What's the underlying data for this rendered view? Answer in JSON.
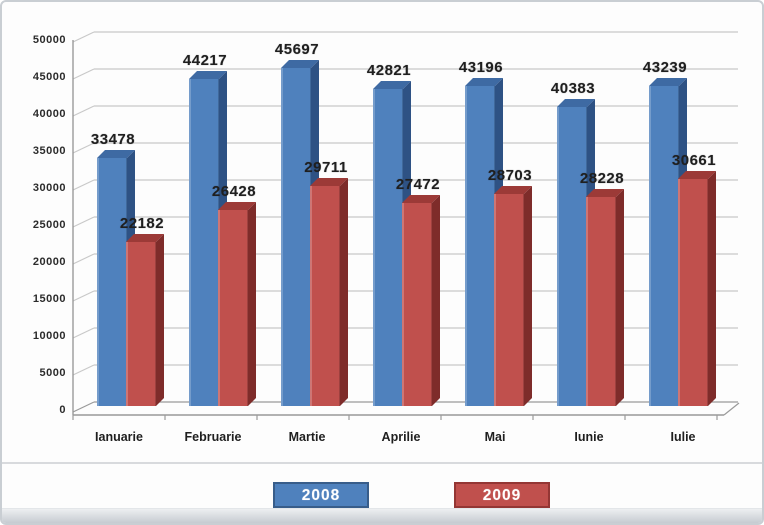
{
  "chart_data": {
    "type": "bar",
    "style": "3d-clustered-column",
    "title": "",
    "xlabel": "",
    "ylabel": "",
    "categories": [
      "Ianuarie",
      "Februarie",
      "Martie",
      "Aprilie",
      "Mai",
      "Iunie",
      "Iulie"
    ],
    "series": [
      {
        "name": "2008",
        "color": "#4f81bd",
        "top_color": "#3e6aa3",
        "side_color": "#2e5284",
        "border_color": "#385d8a",
        "values": [
          33478,
          44217,
          45697,
          42821,
          43196,
          40383,
          43239
        ]
      },
      {
        "name": "2009",
        "color": "#c0504d",
        "top_color": "#9c3a37",
        "side_color": "#7e2c2a",
        "border_color": "#943634",
        "values": [
          22182,
          26428,
          29711,
          27472,
          28703,
          28228,
          30661
        ]
      }
    ],
    "ylim": [
      0,
      50000
    ],
    "yticks": [
      0,
      5000,
      10000,
      15000,
      20000,
      25000,
      30000,
      35000,
      40000,
      45000,
      50000
    ],
    "grid": true,
    "data_labels": true,
    "legend_position": "bottom",
    "colors": {
      "grid": "#c9c9c9",
      "axis": "#9a9a9a",
      "value_label": "#1f1f1f",
      "legend_text": "#ffffff",
      "background": "#ffffff"
    }
  }
}
